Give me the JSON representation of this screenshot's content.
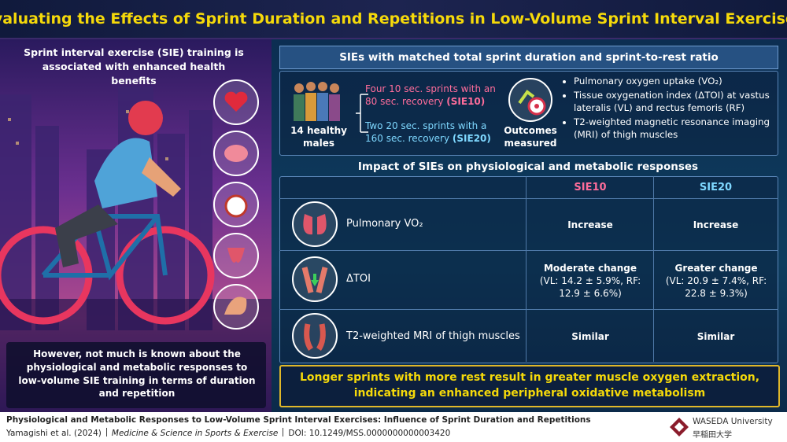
{
  "title": "Evaluating the Effects of Sprint Duration and Repetitions in Low-Volume Sprint Interval Exercises",
  "left_panel": {
    "intro": "Sprint interval exercise (SIE) training is associated with enhanced health benefits",
    "note": "However, not much is known about the physiological and metabolic responses to low-volume SIE training in terms of duration and repetition"
  },
  "design": {
    "heading": "SIEs with matched total sprint duration and sprint-to-rest ratio",
    "participants": "14 healthy males",
    "protocols": [
      {
        "text": "Four 10 sec. sprints with an 80 sec. recovery",
        "label": "(SIE10)"
      },
      {
        "text": "Two 20 sec. sprints with a 160 sec. recovery",
        "label": "(SIE20)"
      }
    ],
    "outcomes_label": "Outcomes measured",
    "outcomes": [
      "Pulmonary oxygen uptake (VO₂)",
      "Tissue oxygenation index (ΔTOI) at vastus lateralis (VL) and rectus femoris (RF)",
      "T2-weighted magnetic resonance imaging (MRI) of thigh muscles"
    ]
  },
  "results": {
    "heading": "Impact of SIEs on physiological and metabolic responses",
    "columns": [
      "SIE10",
      "SIE20"
    ],
    "rows": [
      {
        "measure": "Pulmonary VO₂",
        "cells": [
          {
            "summary": "Increase"
          },
          {
            "summary": "Increase"
          }
        ]
      },
      {
        "measure": "ΔTOI",
        "cells": [
          {
            "summary": "Moderate change",
            "detail": "(VL: 14.2 ± 5.9%, RF: 12.9 ± 6.6%)"
          },
          {
            "summary": "Greater change",
            "detail": "(VL: 20.9 ± 7.4%, RF: 22.8 ± 9.3%)"
          }
        ]
      },
      {
        "measure": "T2-weighted MRI of thigh muscles",
        "cells": [
          {
            "summary": "Similar"
          },
          {
            "summary": "Similar"
          }
        ]
      }
    ]
  },
  "conclusion": "Longer sprints with more rest result in greater muscle oxygen extraction, indicating an enhanced peripheral oxidative metabolism",
  "footer": {
    "citation_title": "Physiological and Metabolic Responses to Low-Volume Sprint Interval Exercises: Influence of Sprint Duration and Repetitions",
    "authors": "Yamagishi et al. (2024)",
    "journal": "Medicine & Science in Sports & Exercise",
    "doi": "DOI: 10.1249/MSS.0000000000003420",
    "logo_name": "WASEDA University",
    "logo_name_jp": "早稲田大学"
  }
}
